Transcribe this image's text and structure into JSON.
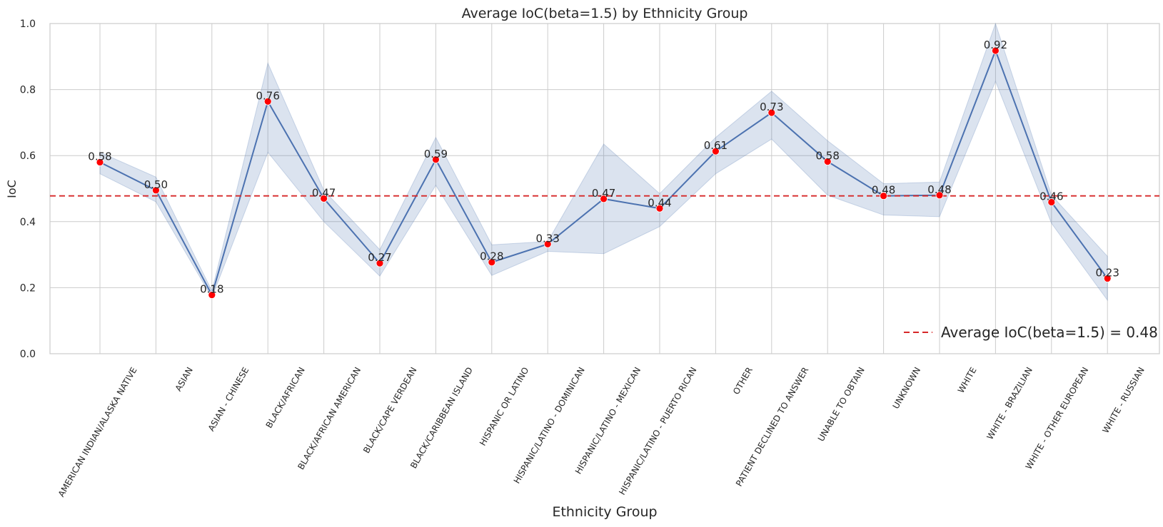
{
  "chart_data": {
    "type": "line",
    "title": "Average IoC(beta=1.5) by Ethnicity Group",
    "xlabel": "Ethnicity Group",
    "ylabel": "IoC",
    "ylim": [
      0,
      1.0
    ],
    "yticks": [
      "0.0",
      "0.2",
      "0.4",
      "0.6",
      "0.8",
      "1.0"
    ],
    "grid": true,
    "legend_position": "bottom-right",
    "categories": [
      "AMERICAN INDIAN/ALASKA NATIVE",
      "ASIAN",
      "ASIAN - CHINESE",
      "BLACK/AFRICAN",
      "BLACK/AFRICAN AMERICAN",
      "BLACK/CAPE VERDEAN",
      "BLACK/CARIBBEAN ISLAND",
      "HISPANIC OR LATINO",
      "HISPANIC/LATINO - DOMINICAN",
      "HISPANIC/LATINO - MEXICAN",
      "HISPANIC/LATINO - PUERTO RICAN",
      "OTHER",
      "PATIENT DECLINED TO ANSWER",
      "UNABLE TO OBTAIN",
      "UNKNOWN",
      "WHITE",
      "WHITE - BRAZILIAN",
      "WHITE - OTHER EUROPEAN",
      "WHITE - RUSSIAN"
    ],
    "values": [
      0.58,
      0.495,
      0.178,
      0.764,
      0.47,
      0.274,
      0.588,
      0.277,
      0.332,
      0.469,
      0.44,
      0.613,
      0.73,
      0.582,
      0.478,
      0.48,
      0.918,
      0.459,
      0.228
    ],
    "value_labels": [
      "0.58",
      "0.50",
      "0.18",
      "0.76",
      "0.47",
      "0.27",
      "0.59",
      "0.28",
      "0.33",
      "0.47",
      "0.44",
      "0.61",
      "0.73",
      "0.58",
      "0.48",
      "0.48",
      "0.92",
      "0.46",
      "0.23"
    ],
    "ci_lower": [
      0.545,
      0.46,
      0.17,
      0.61,
      0.4,
      0.235,
      0.51,
      0.237,
      0.31,
      0.303,
      0.385,
      0.545,
      0.65,
      0.48,
      0.42,
      0.415,
      0.825,
      0.395,
      0.162
    ],
    "ci_upper": [
      0.61,
      0.535,
      0.19,
      0.88,
      0.495,
      0.315,
      0.655,
      0.33,
      0.34,
      0.635,
      0.485,
      0.655,
      0.795,
      0.645,
      0.515,
      0.52,
      1.0,
      0.48,
      0.295
    ],
    "reference_line": {
      "value": 0.478,
      "label": "Average IoC(beta=1.5) = 0.48"
    },
    "colors": {
      "line": "#4c72b0",
      "band": "#4c72b0",
      "marker": "#ff0000",
      "reference": "#d62728",
      "grid": "#cccccc"
    }
  }
}
